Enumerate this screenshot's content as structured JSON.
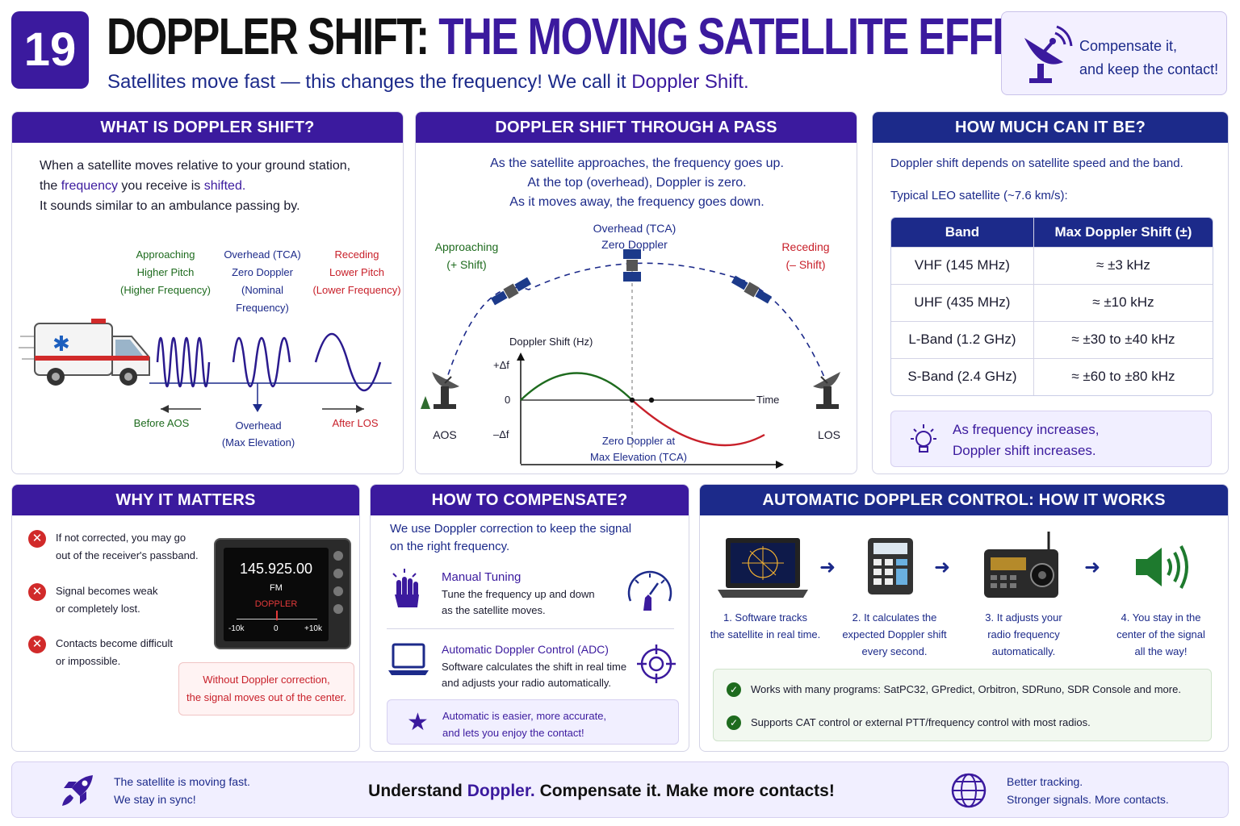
{
  "header": {
    "number": "19",
    "title_part1": "DOPPLER SHIFT:",
    "title_part2": "THE MOVING SATELLITE EFFECT",
    "subtitle_pre": "Satellites move fast — this changes the frequency! We call it",
    "subtitle_highlight": "Doppler Shift.",
    "badge_line1": "Compensate it,",
    "badge_line2": "and keep the contact!"
  },
  "what_is": {
    "heading": "WHAT IS DOPPLER SHIFT?",
    "line1": "When a satellite moves relative to your ground station,",
    "line2_a": "the",
    "line2_b": "frequency",
    "line2_c": "you receive is",
    "line2_d": "shifted.",
    "line3": "It sounds similar to an ambulance passing by.",
    "col1": [
      "Approaching",
      "Higher Pitch",
      "(Higher Frequency)"
    ],
    "col2": [
      "Overhead (TCA)",
      "Zero Doppler",
      "(Nominal Frequency)"
    ],
    "col3": [
      "Receding",
      "Lower Pitch",
      "(Lower Frequency)"
    ],
    "bottom1": "Before AOS",
    "bottom2a": "Overhead",
    "bottom2b": "(Max Elevation)",
    "bottom3": "After LOS"
  },
  "pass": {
    "heading": "DOPPLER SHIFT THROUGH A PASS",
    "line1": "As the satellite approaches, the frequency goes up.",
    "line2": "At the top (overhead), Doppler is zero.",
    "line3": "As it moves away, the frequency goes down.",
    "approaching": "Approaching",
    "approaching_sub": "(+ Shift)",
    "overhead": "Overhead (TCA)",
    "overhead_sub": "Zero Doppler",
    "receding": "Receding",
    "receding_sub": "(– Shift)",
    "aos": "AOS",
    "los": "LOS",
    "graph_title": "Doppler Shift (Hz)",
    "plus": "+Δf",
    "zero": "0",
    "minus": "–Δf",
    "time": "Time",
    "zero_note1": "Zero Doppler at",
    "zero_note2": "Max Elevation (TCA)"
  },
  "how_much": {
    "heading": "HOW MUCH CAN IT BE?",
    "line1": "Doppler shift depends on satellite speed and the band.",
    "line2": "Typical LEO satellite (~7.6 km/s):",
    "col_band": "Band",
    "col_shift": "Max Doppler Shift (±)",
    "rows": [
      {
        "band": "VHF (145 MHz)",
        "shift": "≈ ±3 kHz"
      },
      {
        "band": "UHF (435 MHz)",
        "shift": "≈ ±10 kHz"
      },
      {
        "band": "L-Band (1.2 GHz)",
        "shift": "≈ ±30 to ±40 kHz"
      },
      {
        "band": "S-Band (2.4 GHz)",
        "shift": "≈ ±60 to ±80 kHz"
      }
    ],
    "tip1": "As frequency increases,",
    "tip2": "Doppler shift increases."
  },
  "why": {
    "heading": "WHY IT MATTERS",
    "items": [
      [
        "If not corrected, you may go",
        "out of the receiver's passband."
      ],
      [
        "Signal becomes weak",
        "or completely lost."
      ],
      [
        "Contacts become difficult",
        "or impossible."
      ]
    ],
    "radio_freq": "145.925.00",
    "radio_mode": "FM",
    "radio_label": "DOPPLER",
    "radio_min": "-10k",
    "radio_mid": "0",
    "radio_max": "+10k",
    "warn1": "Without Doppler correction,",
    "warn2": "the signal moves out of the center."
  },
  "compensate": {
    "heading": "HOW TO COMPENSATE?",
    "intro1": "We use Doppler correction to keep the signal",
    "intro2": "on the right frequency.",
    "manual_title": "Manual Tuning",
    "manual1": "Tune the frequency up and down",
    "manual2": "as the satellite moves.",
    "adc_title": "Automatic Doppler Control (ADC)",
    "adc1": "Software calculates the shift in real time",
    "adc2": "and adjusts your radio automatically.",
    "note1": "Automatic is easier, more accurate,",
    "note2": "and lets you enjoy the contact!"
  },
  "adc": {
    "heading": "AUTOMATIC DOPPLER CONTROL: HOW IT WORKS",
    "steps": [
      [
        "1. Software tracks",
        "the satellite in real time."
      ],
      [
        "2. It calculates the",
        "expected Doppler shift",
        "every second."
      ],
      [
        "3. It adjusts your",
        "radio frequency",
        "automatically."
      ],
      [
        "4. You stay in the",
        "center of the signal",
        "all the way!"
      ]
    ],
    "check1": "Works with many programs: SatPC32, GPredict, Orbitron, SDRuno, SDR Console and more.",
    "check2": "Supports CAT control or external PTT/frequency control with most radios."
  },
  "footer": {
    "left1": "The satellite is moving fast.",
    "left2": "We stay in sync!",
    "center_a": "Understand",
    "center_b": "Doppler.",
    "center_c": "Compensate it. Make more contacts!",
    "right1": "Better tracking.",
    "right2": "Stronger signals. More contacts."
  },
  "colors": {
    "purple": "#3b1a9e",
    "navy": "#1c2a8a",
    "red": "#c8202a",
    "green": "#1e6b1e"
  }
}
